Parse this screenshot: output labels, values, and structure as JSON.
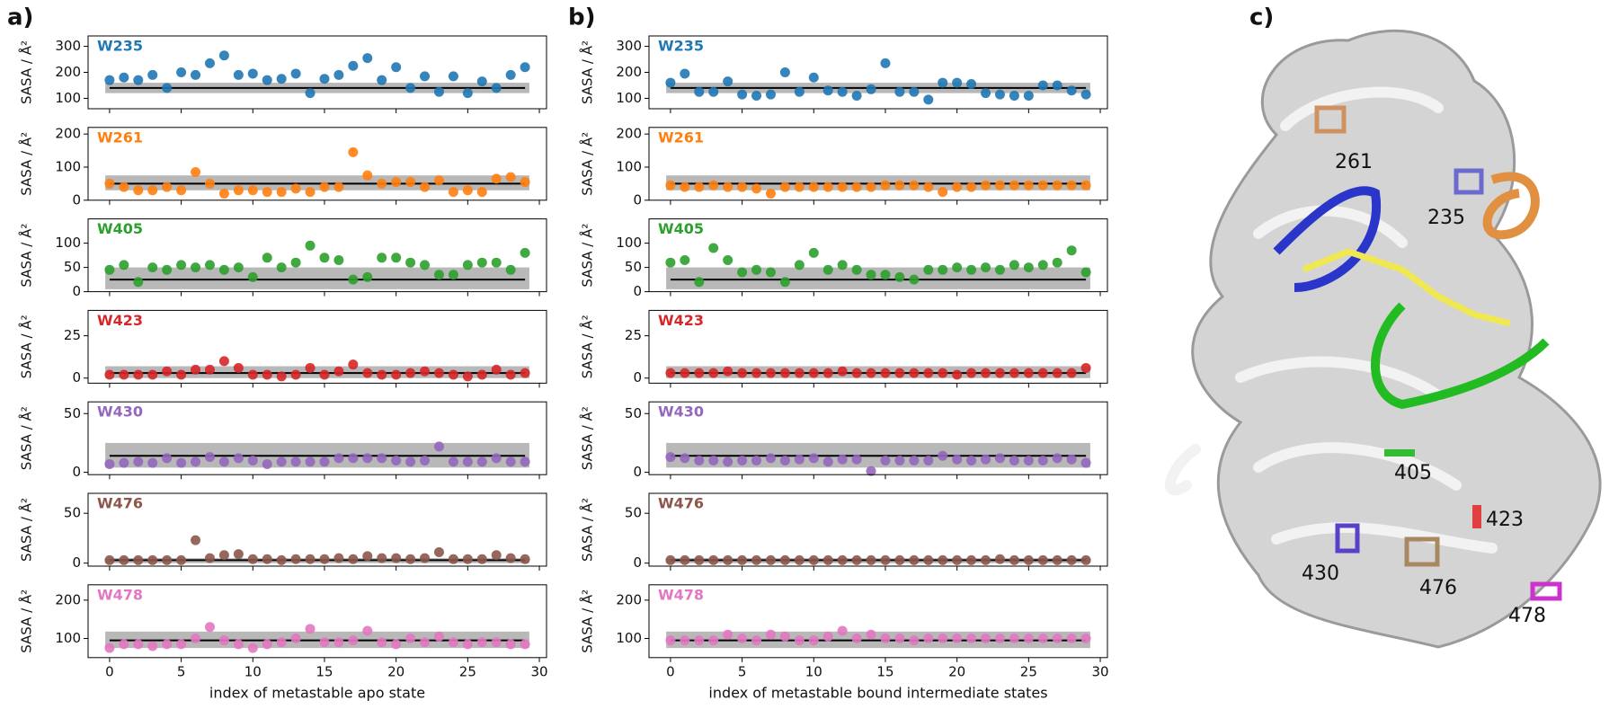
{
  "chart_data": [
    {
      "type": "scatter",
      "panel_label": "a)",
      "x_label": "index of metastable apo state",
      "y_label": "SASA / Å²",
      "x": [
        0,
        1,
        2,
        3,
        4,
        5,
        6,
        7,
        8,
        9,
        10,
        11,
        12,
        13,
        14,
        15,
        16,
        17,
        18,
        19,
        20,
        21,
        22,
        23,
        24,
        25,
        26,
        27,
        28,
        29
      ],
      "xlim": [
        -1.5,
        30.5
      ],
      "xticks": [
        0,
        5,
        10,
        15,
        20,
        25,
        30
      ],
      "subplots": [
        {
          "name": "W235",
          "color": "#1f77b4",
          "ylim": [
            60,
            340
          ],
          "yticks": [
            100,
            200,
            300
          ],
          "reference": 140,
          "band": [
            120,
            160
          ],
          "values": [
            170,
            180,
            170,
            190,
            140,
            200,
            190,
            235,
            265,
            190,
            195,
            170,
            175,
            195,
            120,
            175,
            190,
            225,
            255,
            170,
            220,
            140,
            185,
            125,
            185,
            120,
            165,
            140,
            190,
            220
          ]
        },
        {
          "name": "W261",
          "color": "#ff7f0e",
          "ylim": [
            0,
            220
          ],
          "yticks": [
            0,
            100,
            200
          ],
          "reference": 50,
          "band": [
            30,
            75
          ],
          "values": [
            50,
            40,
            30,
            30,
            40,
            30,
            85,
            50,
            20,
            30,
            30,
            25,
            25,
            35,
            25,
            40,
            40,
            145,
            75,
            50,
            55,
            55,
            40,
            60,
            25,
            30,
            25,
            65,
            70,
            55
          ]
        },
        {
          "name": "W405",
          "color": "#2ca02c",
          "ylim": [
            0,
            150
          ],
          "yticks": [
            0,
            50,
            100
          ],
          "reference": 25,
          "band": [
            5,
            50
          ],
          "values": [
            45,
            55,
            20,
            50,
            45,
            55,
            50,
            55,
            45,
            50,
            30,
            70,
            50,
            60,
            95,
            70,
            65,
            25,
            30,
            70,
            70,
            60,
            55,
            35,
            35,
            55,
            60,
            60,
            45,
            80
          ]
        },
        {
          "name": "W423",
          "color": "#d62728",
          "ylim": [
            -3,
            40
          ],
          "yticks": [
            0,
            25
          ],
          "reference": 3,
          "band": [
            0,
            7
          ],
          "values": [
            2,
            2,
            2,
            2,
            4,
            2,
            5,
            5,
            10,
            6,
            2,
            2,
            1,
            2,
            6,
            2,
            4,
            8,
            3,
            2,
            2,
            3,
            4,
            3,
            2,
            1,
            2,
            5,
            2,
            3
          ]
        },
        {
          "name": "W430",
          "color": "#9467bd",
          "ylim": [
            -2,
            60
          ],
          "yticks": [
            0,
            50
          ],
          "reference": 14,
          "band": [
            4,
            25
          ],
          "values": [
            7,
            8,
            9,
            8,
            12,
            8,
            9,
            13,
            9,
            12,
            10,
            7,
            9,
            9,
            9,
            9,
            12,
            12,
            12,
            12,
            10,
            9,
            10,
            22,
            9,
            9,
            9,
            12,
            9,
            9
          ]
        },
        {
          "name": "W476",
          "color": "#8c564b",
          "ylim": [
            -3,
            70
          ],
          "yticks": [
            0,
            50
          ],
          "reference": 3,
          "band": [
            0,
            5
          ],
          "values": [
            3,
            3,
            3,
            3,
            3,
            3,
            23,
            5,
            8,
            9,
            4,
            4,
            3,
            4,
            4,
            4,
            5,
            4,
            7,
            5,
            5,
            4,
            5,
            11,
            4,
            4,
            4,
            8,
            5,
            4
          ]
        },
        {
          "name": "W478",
          "color": "#e377c2",
          "ylim": [
            50,
            240
          ],
          "yticks": [
            100,
            200
          ],
          "reference": 95,
          "band": [
            75,
            118
          ],
          "values": [
            75,
            85,
            85,
            80,
            85,
            85,
            100,
            130,
            95,
            85,
            75,
            85,
            90,
            100,
            125,
            90,
            90,
            95,
            120,
            90,
            85,
            100,
            90,
            105,
            90,
            85,
            90,
            90,
            85,
            85
          ]
        }
      ]
    },
    {
      "type": "scatter",
      "panel_label": "b)",
      "x_label": "index of metastable bound intermediate states",
      "y_label": "SASA / Å²",
      "x": [
        0,
        1,
        2,
        3,
        4,
        5,
        6,
        7,
        8,
        9,
        10,
        11,
        12,
        13,
        14,
        15,
        16,
        17,
        18,
        19,
        20,
        21,
        22,
        23,
        24,
        25,
        26,
        27,
        28,
        29
      ],
      "xlim": [
        -1.5,
        30.5
      ],
      "xticks": [
        0,
        5,
        10,
        15,
        20,
        25,
        30
      ],
      "subplots": [
        {
          "name": "W235",
          "color": "#1f77b4",
          "ylim": [
            60,
            340
          ],
          "yticks": [
            100,
            200,
            300
          ],
          "reference": 140,
          "band": [
            120,
            160
          ],
          "values": [
            160,
            195,
            125,
            125,
            165,
            115,
            110,
            115,
            200,
            125,
            180,
            130,
            125,
            110,
            135,
            235,
            125,
            125,
            95,
            160,
            160,
            155,
            120,
            115,
            110,
            110,
            150,
            150,
            130,
            115
          ]
        },
        {
          "name": "W261",
          "color": "#ff7f0e",
          "ylim": [
            0,
            220
          ],
          "yticks": [
            0,
            100,
            200
          ],
          "reference": 50,
          "band": [
            30,
            75
          ],
          "values": [
            45,
            40,
            40,
            45,
            40,
            40,
            35,
            20,
            40,
            40,
            40,
            40,
            40,
            40,
            40,
            45,
            45,
            45,
            40,
            25,
            40,
            40,
            45,
            45,
            45,
            45,
            45,
            45,
            45,
            45
          ]
        },
        {
          "name": "W405",
          "color": "#2ca02c",
          "ylim": [
            0,
            150
          ],
          "yticks": [
            0,
            50,
            100
          ],
          "reference": 25,
          "band": [
            5,
            50
          ],
          "values": [
            60,
            65,
            20,
            90,
            65,
            40,
            45,
            40,
            20,
            55,
            80,
            45,
            55,
            45,
            35,
            35,
            30,
            25,
            45,
            45,
            50,
            45,
            50,
            45,
            55,
            50,
            55,
            60,
            85,
            40
          ]
        },
        {
          "name": "W423",
          "color": "#d62728",
          "ylim": [
            -3,
            40
          ],
          "yticks": [
            0,
            25
          ],
          "reference": 3,
          "band": [
            0,
            7
          ],
          "values": [
            3,
            3,
            3,
            3,
            4,
            3,
            3,
            3,
            3,
            3,
            3,
            3,
            4,
            3,
            3,
            3,
            3,
            3,
            3,
            3,
            2,
            3,
            3,
            3,
            3,
            3,
            3,
            3,
            3,
            6
          ]
        },
        {
          "name": "W430",
          "color": "#9467bd",
          "ylim": [
            -2,
            60
          ],
          "yticks": [
            0,
            50
          ],
          "reference": 14,
          "band": [
            4,
            25
          ],
          "values": [
            13,
            12,
            10,
            10,
            9,
            10,
            10,
            12,
            10,
            11,
            12,
            9,
            11,
            11,
            1,
            10,
            10,
            10,
            10,
            14,
            11,
            10,
            11,
            12,
            10,
            10,
            10,
            12,
            11,
            8
          ]
        },
        {
          "name": "W476",
          "color": "#8c564b",
          "ylim": [
            -3,
            70
          ],
          "yticks": [
            0,
            50
          ],
          "reference": 3,
          "band": [
            0,
            5
          ],
          "values": [
            3,
            3,
            3,
            3,
            3,
            3,
            3,
            3,
            3,
            3,
            3,
            3,
            3,
            3,
            3,
            3,
            3,
            3,
            3,
            3,
            3,
            3,
            3,
            4,
            3,
            3,
            3,
            3,
            3,
            3
          ]
        },
        {
          "name": "W478",
          "color": "#e377c2",
          "ylim": [
            50,
            240
          ],
          "yticks": [
            100,
            200
          ],
          "reference": 95,
          "band": [
            75,
            118
          ],
          "values": [
            95,
            95,
            95,
            95,
            110,
            100,
            95,
            110,
            105,
            95,
            95,
            105,
            120,
            100,
            110,
            100,
            100,
            95,
            100,
            100,
            100,
            100,
            100,
            100,
            100,
            100,
            100,
            100,
            100,
            100
          ]
        }
      ]
    }
  ],
  "panel_c": {
    "label": "c)",
    "residues": [
      "261",
      "235",
      "405",
      "423",
      "430",
      "476",
      "478"
    ]
  }
}
